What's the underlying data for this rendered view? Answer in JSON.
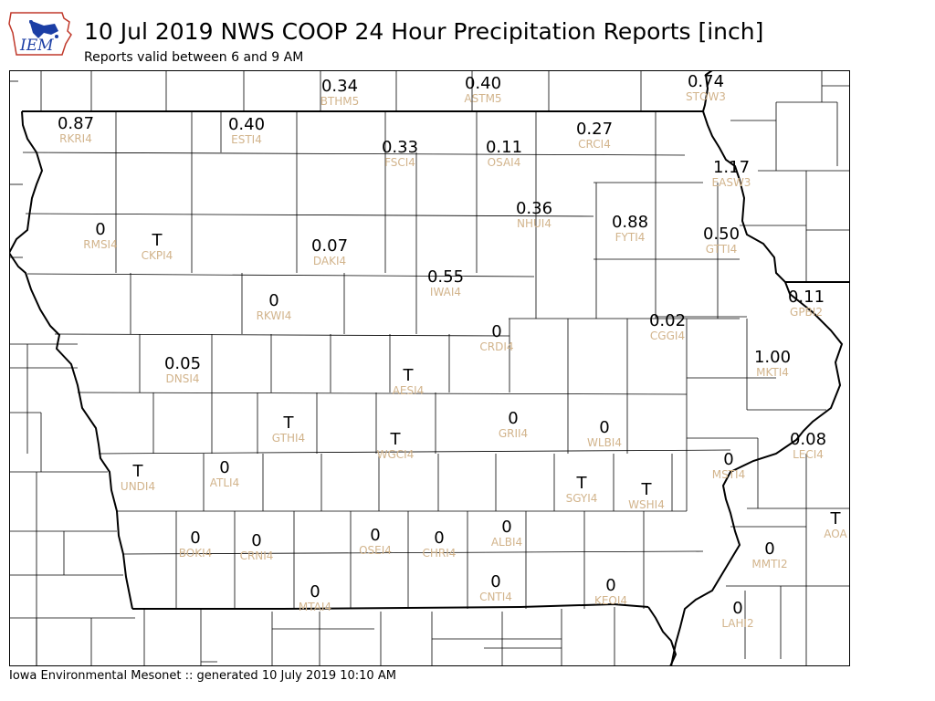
{
  "title": "10 Jul 2019 NWS COOP 24 Hour Precipitation Reports [inch]",
  "subtitle": "Reports valid between 6 and 9 AM",
  "logo_text": "IEM",
  "footer": "Iowa Environmental Mesonet :: generated 10 July 2019 10:10 AM",
  "colors": {
    "value": "#000000",
    "station_id": "#d2b48c",
    "logo_blue": "#1b3ea5",
    "logo_red": "#c0392b"
  },
  "stations": [
    {
      "id": "BTHM5",
      "value": "0.34"
    },
    {
      "id": "ASTM5",
      "value": "0.40"
    },
    {
      "id": "STOW3",
      "value": "0.74"
    },
    {
      "id": "RKRI4",
      "value": "0.87"
    },
    {
      "id": "ESTI4",
      "value": "0.40"
    },
    {
      "id": "FSCI4",
      "value": "0.33"
    },
    {
      "id": "OSAI4",
      "value": "0.11"
    },
    {
      "id": "CRCI4",
      "value": "0.27"
    },
    {
      "id": "EASW3",
      "value": "1.17"
    },
    {
      "id": "NHUI4",
      "value": "0.36"
    },
    {
      "id": "FYTI4",
      "value": "0.88"
    },
    {
      "id": "GTTI4",
      "value": "0.50"
    },
    {
      "id": "RMSI4",
      "value": "0"
    },
    {
      "id": "CKPI4",
      "value": "T"
    },
    {
      "id": "DAKI4",
      "value": "0.07"
    },
    {
      "id": "IWAI4",
      "value": "0.55"
    },
    {
      "id": "GPBI2",
      "value": "0.11"
    },
    {
      "id": "RKWI4",
      "value": "0"
    },
    {
      "id": "CRDI4",
      "value": "0"
    },
    {
      "id": "CGGI4",
      "value": "0.02"
    },
    {
      "id": "MKTI4",
      "value": "1.00"
    },
    {
      "id": "DNSI4",
      "value": "0.05"
    },
    {
      "id": "AESI4",
      "value": "T"
    },
    {
      "id": "GTHI4",
      "value": "T"
    },
    {
      "id": "GRII4",
      "value": "0"
    },
    {
      "id": "WLBI4",
      "value": "0"
    },
    {
      "id": "LECI4",
      "value": "0.08"
    },
    {
      "id": "WGCI4",
      "value": "T"
    },
    {
      "id": "UNDI4",
      "value": "T"
    },
    {
      "id": "ATLI4",
      "value": "0"
    },
    {
      "id": "MSTI4",
      "value": "0"
    },
    {
      "id": "SGYI4",
      "value": "T"
    },
    {
      "id": "WSHI4",
      "value": "T"
    },
    {
      "id": "AOA",
      "value": "T"
    },
    {
      "id": "BOKI4",
      "value": "0"
    },
    {
      "id": "CRNI4",
      "value": "0"
    },
    {
      "id": "OSEI4",
      "value": "0"
    },
    {
      "id": "CHRI4",
      "value": "0"
    },
    {
      "id": "ALBI4",
      "value": "0"
    },
    {
      "id": "MMTI2",
      "value": "0"
    },
    {
      "id": "MTAI4",
      "value": "0"
    },
    {
      "id": "CNTI4",
      "value": "0"
    },
    {
      "id": "KEOI4",
      "value": "0"
    },
    {
      "id": "LAHI2",
      "value": "0"
    }
  ]
}
